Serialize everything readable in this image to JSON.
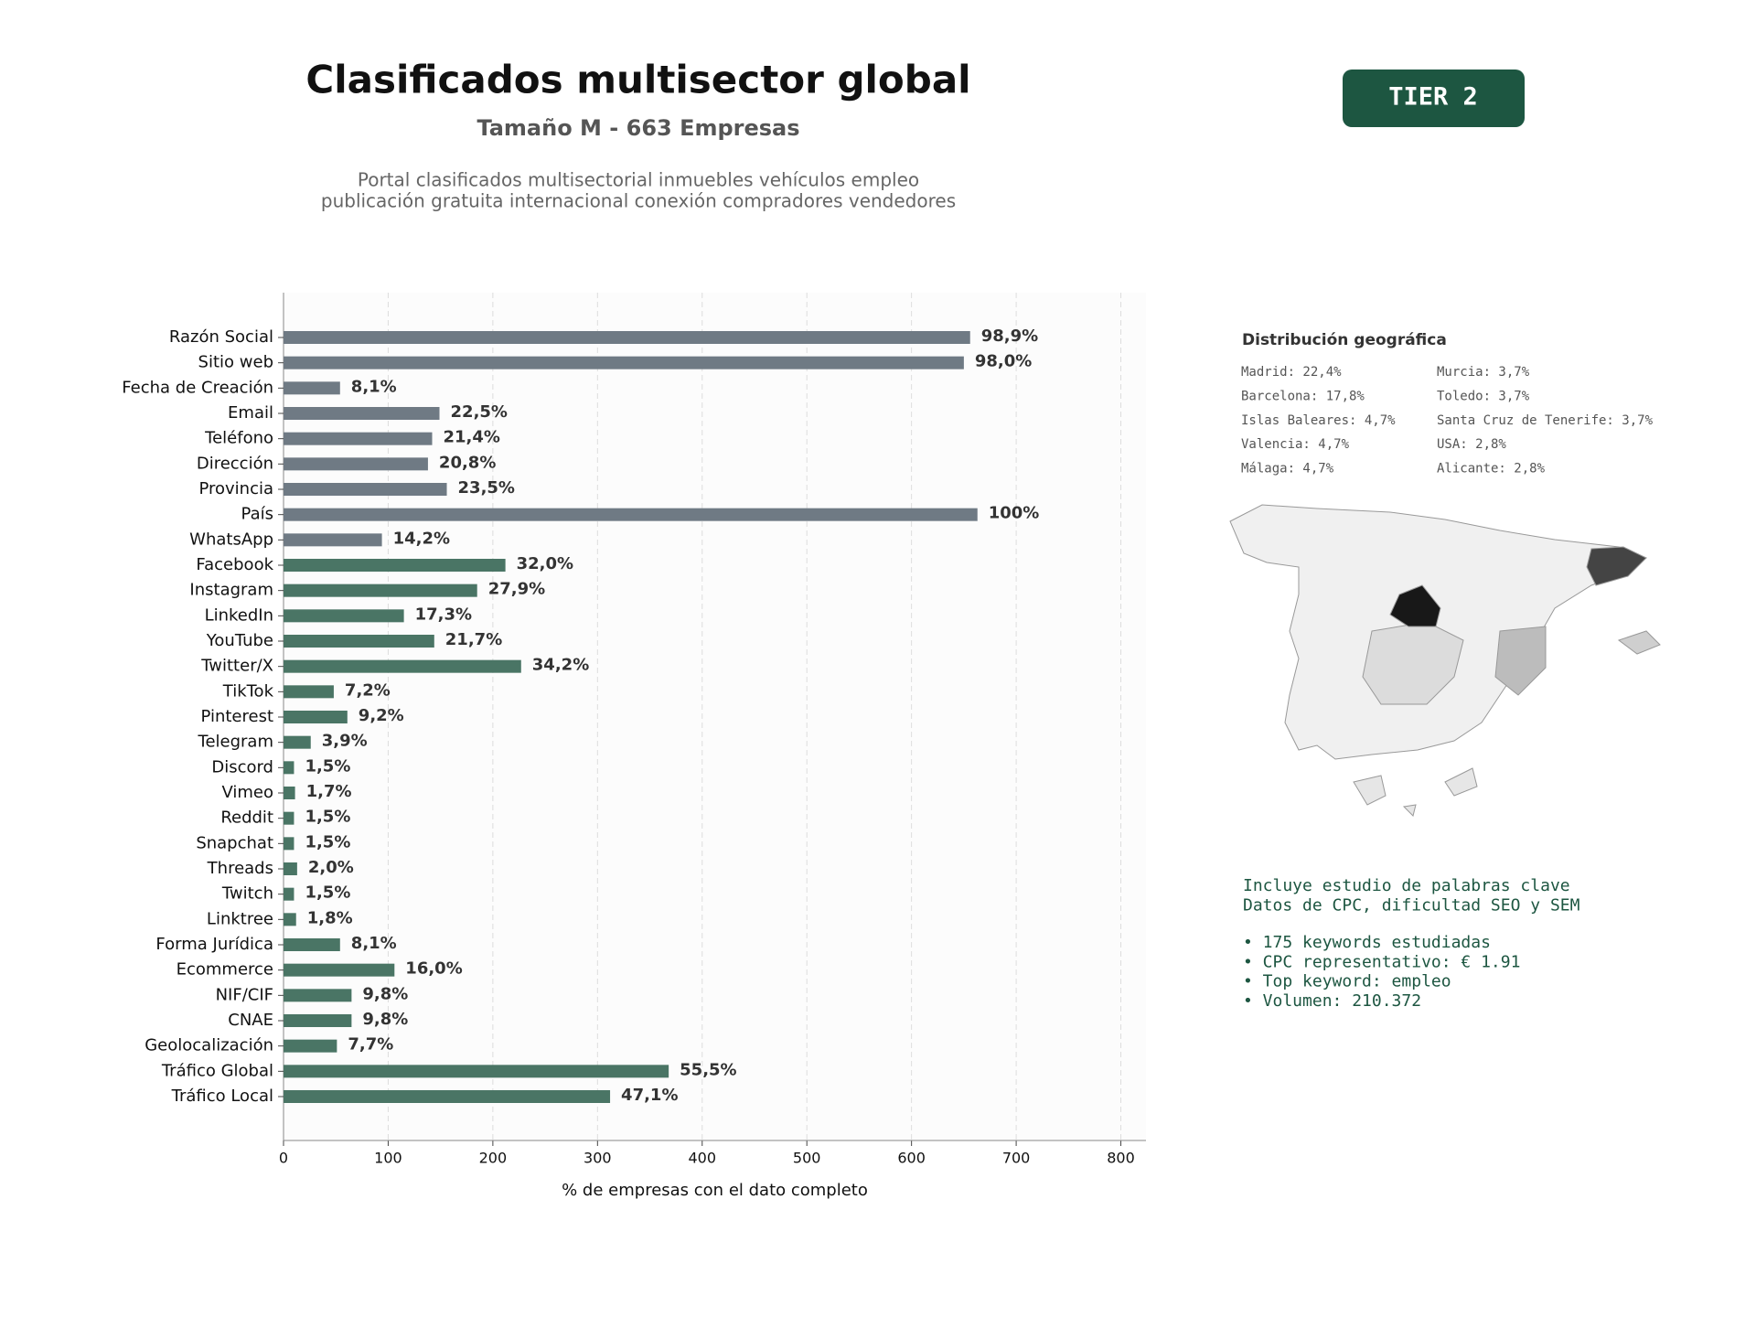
{
  "chart_data": {
    "type": "bar",
    "orientation": "horizontal",
    "title": "Clasificados multisector global",
    "subtitle": "Tamaño M - 663 Empresas",
    "description": [
      "Portal clasificados multisectorial inmuebles vehículos empleo",
      "publicación gratuita internacional conexión compradores vendedores"
    ],
    "categories": [
      "Razón Social",
      "Sitio web",
      "Fecha de Creación",
      "Email",
      "Teléfono",
      "Dirección",
      "Provincia",
      "País",
      "WhatsApp",
      "Facebook",
      "Instagram",
      "LinkedIn",
      "YouTube",
      "Twitter/X",
      "TikTok",
      "Pinterest",
      "Telegram",
      "Discord",
      "Vimeo",
      "Reddit",
      "Snapchat",
      "Threads",
      "Twitch",
      "Linktree",
      "Forma Jurídica",
      "Ecommerce",
      "NIF/CIF",
      "CNAE",
      "Geolocalización",
      "Tráfico Global",
      "Tráfico Local"
    ],
    "values": [
      656,
      650,
      54,
      149,
      142,
      138,
      156,
      663,
      94,
      212,
      185,
      115,
      144,
      227,
      48,
      61,
      26,
      10,
      11,
      10,
      10,
      13,
      10,
      12,
      54,
      106,
      65,
      65,
      51,
      368,
      312
    ],
    "value_labels": [
      "98,9%",
      "98,0%",
      "8,1%",
      "22,5%",
      "21,4%",
      "20,8%",
      "23,5%",
      "100%",
      "14,2%",
      "32,0%",
      "27,9%",
      "17,3%",
      "21,7%",
      "34,2%",
      "7,2%",
      "9,2%",
      "3,9%",
      "1,5%",
      "1,7%",
      "1,5%",
      "1,5%",
      "2,0%",
      "1,5%",
      "1,8%",
      "8,1%",
      "16,0%",
      "9,8%",
      "9,8%",
      "7,7%",
      "55,5%",
      "47,1%"
    ],
    "colors": [
      "#6f7a84",
      "#6f7a84",
      "#6f7a84",
      "#6f7a84",
      "#6f7a84",
      "#6f7a84",
      "#6f7a84",
      "#6f7a84",
      "#6f7a84",
      "#4a7565",
      "#4a7565",
      "#4a7565",
      "#4a7565",
      "#4a7565",
      "#4a7565",
      "#4a7565",
      "#4a7565",
      "#4a7565",
      "#4a7565",
      "#4a7565",
      "#4a7565",
      "#4a7565",
      "#4a7565",
      "#4a7565",
      "#4a7565",
      "#4a7565",
      "#4a7565",
      "#4a7565",
      "#4a7565",
      "#4a7565",
      "#4a7565"
    ],
    "xlim": [
      0,
      824
    ],
    "xticks": [
      0,
      100,
      200,
      300,
      400,
      500,
      600,
      700,
      800
    ],
    "xlabel": "% de empresas con el dato completo",
    "grid": true
  },
  "tier_badge": "TIER 2",
  "geo": {
    "title": "Distribución geográfica",
    "items": [
      "Madrid: 22,4%",
      "Barcelona: 17,8%",
      "Islas Baleares: 4,7%",
      "Valencia: 4,7%",
      "Málaga: 4,7%",
      "Murcia: 3,7%",
      "Toledo: 3,7%",
      "Santa Cruz de Tenerife: 3,7%",
      "USA: 2,8%",
      "Alicante: 2,8%"
    ]
  },
  "keywords": {
    "intro": [
      "Incluye estudio de palabras clave",
      "Datos de CPC, dificultad SEO y SEM"
    ],
    "bullets": [
      "• 175 keywords estudiadas",
      "• CPC representativo: € 1.91",
      "• Top keyword: empleo",
      "• Volumen: 210.372"
    ]
  }
}
